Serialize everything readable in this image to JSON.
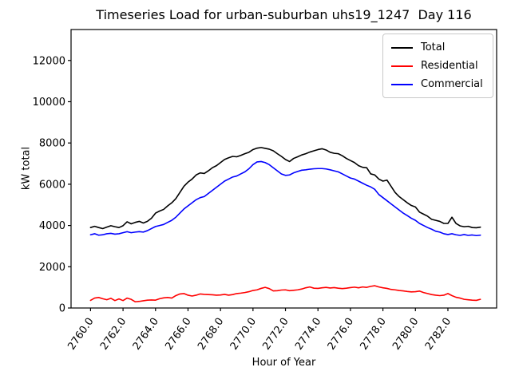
{
  "chart_data": {
    "type": "line",
    "title": "Timeseries Load for urban-suburban uhs19_1247  Day 116",
    "xlabel": "Hour of Year",
    "ylabel": "kW total",
    "legend_position": "upper right",
    "grid": false,
    "xlim": [
      2758.8,
      2785.0
    ],
    "ylim": [
      0,
      13500
    ],
    "x_start": 2760.0,
    "x_step": 0.25,
    "x_count": 97,
    "xticks": {
      "values": [
        2760,
        2762,
        2764,
        2766,
        2768,
        2770,
        2772,
        2774,
        2776,
        2778,
        2780,
        2782
      ],
      "labels": [
        "2760.0",
        "2762.0",
        "2764.0",
        "2766.0",
        "2768.0",
        "2770.0",
        "2772.0",
        "2774.0",
        "2776.0",
        "2778.0",
        "2780.0",
        "2782.0"
      ]
    },
    "yticks": {
      "values": [
        0,
        2000,
        4000,
        6000,
        8000,
        10000,
        12000
      ],
      "labels": [
        "0",
        "2000",
        "4000",
        "6000",
        "8000",
        "10000",
        "12000"
      ]
    },
    "series": [
      {
        "name": "Total",
        "color": "#000000",
        "values": [
          3900,
          3960,
          3900,
          3850,
          3920,
          3990,
          3940,
          3900,
          3990,
          4180,
          4080,
          4150,
          4200,
          4120,
          4200,
          4350,
          4600,
          4700,
          4780,
          4950,
          5100,
          5300,
          5600,
          5900,
          6100,
          6250,
          6450,
          6550,
          6520,
          6650,
          6800,
          6900,
          7050,
          7200,
          7280,
          7350,
          7330,
          7400,
          7480,
          7550,
          7680,
          7750,
          7780,
          7740,
          7700,
          7620,
          7480,
          7350,
          7200,
          7100,
          7250,
          7330,
          7420,
          7480,
          7560,
          7620,
          7680,
          7720,
          7660,
          7550,
          7500,
          7480,
          7380,
          7250,
          7150,
          7050,
          6900,
          6820,
          6800,
          6500,
          6450,
          6250,
          6150,
          6200,
          5900,
          5600,
          5400,
          5250,
          5100,
          4970,
          4900,
          4650,
          4550,
          4450,
          4300,
          4250,
          4200,
          4100,
          4100,
          4400,
          4100,
          3980,
          3940,
          3960,
          3900,
          3890,
          3920
        ]
      },
      {
        "name": "Residential",
        "color": "#ff0000",
        "values": [
          370,
          480,
          510,
          450,
          400,
          470,
          360,
          440,
          360,
          480,
          420,
          300,
          320,
          350,
          380,
          390,
          380,
          450,
          490,
          510,
          480,
          600,
          680,
          700,
          620,
          580,
          620,
          680,
          660,
          650,
          640,
          620,
          630,
          660,
          620,
          650,
          700,
          720,
          750,
          790,
          850,
          880,
          950,
          1000,
          940,
          830,
          840,
          870,
          880,
          840,
          860,
          880,
          920,
          980,
          1020,
          960,
          950,
          980,
          1000,
          970,
          990,
          960,
          940,
          960,
          990,
          1010,
          980,
          1020,
          1000,
          1050,
          1080,
          1020,
          980,
          950,
          900,
          880,
          850,
          830,
          800,
          780,
          790,
          820,
          750,
          700,
          650,
          620,
          600,
          620,
          700,
          600,
          520,
          480,
          420,
          400,
          380,
          370,
          420
        ]
      },
      {
        "name": "Commercial",
        "color": "#0000ff",
        "values": [
          3550,
          3600,
          3530,
          3550,
          3600,
          3620,
          3580,
          3600,
          3650,
          3700,
          3650,
          3680,
          3700,
          3680,
          3750,
          3850,
          3950,
          4000,
          4050,
          4150,
          4250,
          4400,
          4600,
          4800,
          4950,
          5100,
          5250,
          5350,
          5400,
          5550,
          5700,
          5850,
          6000,
          6150,
          6250,
          6350,
          6400,
          6500,
          6600,
          6750,
          6950,
          7080,
          7100,
          7050,
          6950,
          6800,
          6650,
          6500,
          6430,
          6450,
          6550,
          6620,
          6680,
          6700,
          6730,
          6750,
          6760,
          6760,
          6740,
          6700,
          6650,
          6600,
          6500,
          6400,
          6300,
          6250,
          6150,
          6050,
          5950,
          5870,
          5750,
          5500,
          5350,
          5200,
          5050,
          4900,
          4750,
          4600,
          4480,
          4350,
          4250,
          4100,
          4000,
          3900,
          3820,
          3720,
          3680,
          3600,
          3560,
          3600,
          3550,
          3520,
          3560,
          3520,
          3540,
          3510,
          3530
        ]
      }
    ]
  }
}
